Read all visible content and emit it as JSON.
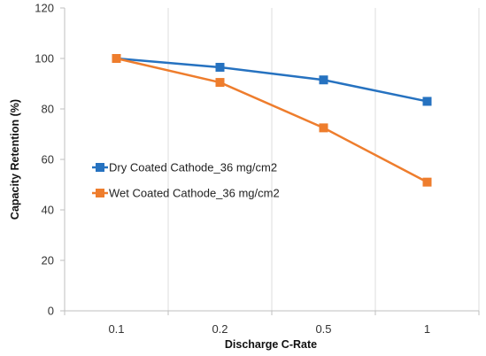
{
  "chart_data": {
    "type": "line",
    "categories": [
      "0.1",
      "0.2",
      "0.5",
      "1"
    ],
    "series": [
      {
        "name": "Dry Coated Cathode_36 mg/cm2",
        "values": [
          100,
          96.5,
          91.5,
          83
        ],
        "color": "#2672C0"
      },
      {
        "name": "Wet Coated Cathode_36 mg/cm2",
        "values": [
          100,
          90.5,
          72.5,
          51
        ],
        "color": "#EE7D2D"
      }
    ],
    "xlabel": "Discharge C-Rate",
    "ylabel": "Capacity Retention (%)",
    "ylim": [
      0,
      120
    ],
    "yticks": [
      0,
      20,
      40,
      60,
      80,
      100,
      120
    ],
    "grid": "vertical",
    "legend_position": "center-left",
    "colors": {
      "gridline": "#DCDCDC",
      "axis": "#BFBFBF"
    }
  }
}
